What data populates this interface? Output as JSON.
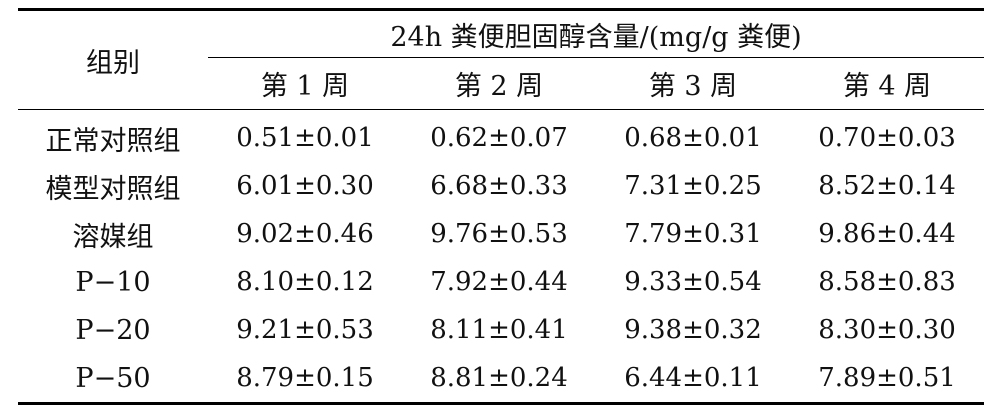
{
  "table": {
    "group_header": "组别",
    "span_header": "24h 粪便胆固醇含量/(mg/g 粪便)",
    "weeks": [
      "第 1 周",
      "第 2 周",
      "第 3 周",
      "第 4 周"
    ],
    "rows": [
      {
        "group": "正常对照组",
        "values": [
          "0.51±0.01",
          "0.62±0.07",
          "0.68±0.01",
          "0.70±0.03"
        ]
      },
      {
        "group": "模型对照组",
        "values": [
          "6.01±0.30",
          "6.68±0.33",
          "7.31±0.25",
          "8.52±0.14"
        ]
      },
      {
        "group": "溶媒组",
        "values": [
          "9.02±0.46",
          "9.76±0.53",
          "7.79±0.31",
          "9.86±0.44"
        ]
      },
      {
        "group": "P−10",
        "values": [
          "8.10±0.12",
          "7.92±0.44",
          "9.33±0.54",
          "8.58±0.83"
        ]
      },
      {
        "group": "P−20",
        "values": [
          "9.21±0.53",
          "8.11±0.41",
          "9.38±0.32",
          "8.30±0.30"
        ]
      },
      {
        "group": "P−50",
        "values": [
          "8.79±0.15",
          "8.81±0.24",
          "6.44±0.11",
          "7.89±0.51"
        ]
      }
    ]
  }
}
